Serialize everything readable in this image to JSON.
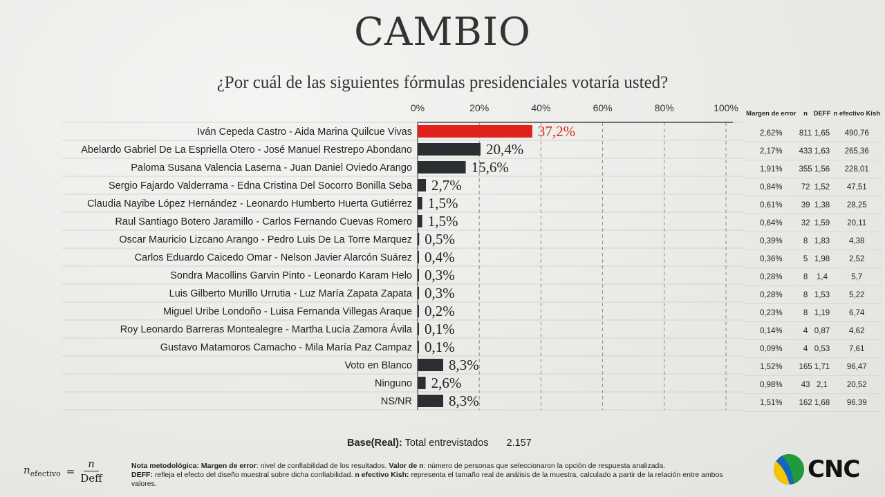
{
  "header": {
    "logo_text": "CAMBIO",
    "question": "¿Por cuál de las siguientes fórmulas presidenciales votaría usted?"
  },
  "chart_data": {
    "type": "bar",
    "orientation": "horizontal",
    "title": "¿Por cuál de las siguientes fórmulas presidenciales votaría usted?",
    "xlim": [
      0,
      100
    ],
    "ticks": [
      "0%",
      "20%",
      "40%",
      "60%",
      "80%",
      "100%"
    ],
    "grid": true,
    "highlight_color": "#e3211b",
    "bar_color": "#2b2f31",
    "categories": [
      "Iván Cepeda Castro - Aida Marina Quilcue Vivas",
      "Abelardo Gabriel De La Espriella Otero - José Manuel Restrepo Abondano",
      "Paloma Susana Valencia Laserna - Juan Daniel Oviedo Arango",
      "Sergio Fajardo Valderrama - Edna Cristina Del Socorro Bonilla Seba",
      "Claudia Nayibe López Hernández - Leonardo Humberto Huerta Gutiérrez",
      "Raul Santiago Botero Jaramillo - Carlos Fernando Cuevas Romero",
      "Oscar Mauricio Lizcano Arango - Pedro Luis De La Torre Marquez",
      "Carlos Eduardo Caicedo Omar - Nelson Javier Alarcón Suárez",
      "Sondra Macollins Garvin Pinto - Leonardo Karam Helo",
      "Luis Gilberto Murillo Urrutia - Luz María Zapata Zapata",
      "Miguel Uribe Londoño - Luisa Fernanda Villegas Araque",
      "Roy Leonardo Barreras Montealegre - Martha Lucía Zamora Ávila",
      "Gustavo Matamoros Camacho - Mila María Paz Campaz",
      "Voto en Blanco",
      "Ninguno",
      "NS/NR"
    ],
    "values": [
      37.2,
      20.4,
      15.6,
      2.7,
      1.5,
      1.5,
      0.5,
      0.4,
      0.3,
      0.3,
      0.2,
      0.1,
      0.1,
      8.3,
      2.6,
      8.3
    ],
    "value_labels": [
      "37,2%",
      "20,4%",
      "15,6%",
      "2,7%",
      "1,5%",
      "1,5%",
      "0,5%",
      "0,4%",
      "0,3%",
      "0,3%",
      "0,2%",
      "0,1%",
      "0,1%",
      "8,3%",
      "2,6%",
      "8,3%"
    ]
  },
  "stats_table": {
    "headers": [
      "Margen de error",
      "n",
      "DEFF",
      "n efectivo Kish"
    ],
    "rows": [
      [
        "2,62%",
        "811",
        "1,65",
        "490,76"
      ],
      [
        "2,17%",
        "433",
        "1,63",
        "265,36"
      ],
      [
        "1,91%",
        "355",
        "1,56",
        "228,01"
      ],
      [
        "0,84%",
        "72",
        "1,52",
        "47,51"
      ],
      [
        "0,61%",
        "39",
        "1,38",
        "28,25"
      ],
      [
        "0,64%",
        "32",
        "1,59",
        "20,11"
      ],
      [
        "0,39%",
        "8",
        "1,83",
        "4,38"
      ],
      [
        "0,36%",
        "5",
        "1,98",
        "2,52"
      ],
      [
        "0,28%",
        "8",
        "1,4",
        "5,7"
      ],
      [
        "0,28%",
        "8",
        "1,53",
        "5,22"
      ],
      [
        "0,23%",
        "8",
        "1,19",
        "6,74"
      ],
      [
        "0,14%",
        "4",
        "0,87",
        "4,62"
      ],
      [
        "0,09%",
        "4",
        "0,53",
        "7,61"
      ],
      [
        "1,52%",
        "165",
        "1,71",
        "96,47"
      ],
      [
        "0,98%",
        "43",
        "2,1",
        "20,52"
      ],
      [
        "1,51%",
        "162",
        "1,68",
        "96,39"
      ]
    ]
  },
  "base": {
    "label": "Base(Real):",
    "text": "Total entrevistados",
    "value": "2.157"
  },
  "formula": {
    "lhs": "n",
    "lhs_sub": "efectivo",
    "eq": "=",
    "numerator": "n",
    "denominator": "Deff"
  },
  "note": {
    "t1": "Nota metodológica: Margen de error",
    "t2": ": nivel de confiabilidad de los resultados. ",
    "t3": "Valor de n",
    "t4": ": número de personas que seleccionaron la opción de respuesta analizada.",
    "t5": "DEFF:",
    "t6": " refleja el efecto del diseño muestral sobre dicha confiabilidad. ",
    "t7": "n efectivo Kish:",
    "t8": " representa el tamaño real de análisis de la muestra, calculado a partir de la relación entre ambos valores."
  },
  "brand": {
    "name": "CNC",
    "colors": [
      "#f2c500",
      "#1f9a3c",
      "#1565c0"
    ]
  }
}
